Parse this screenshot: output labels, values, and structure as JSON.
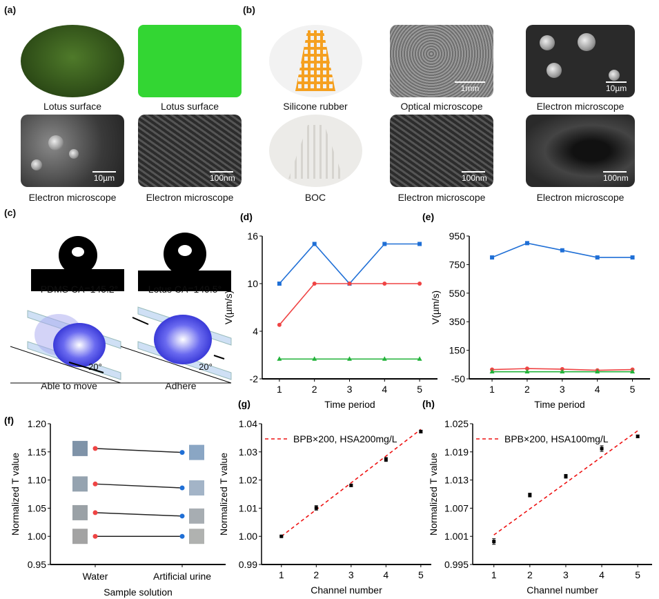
{
  "panels": {
    "a": {
      "label": "(a)",
      "captions": [
        "Lotus surface",
        "Lotus surface",
        "Electron microscope",
        "Electron microscope"
      ],
      "scales": [
        "10µm",
        "100nm"
      ]
    },
    "b": {
      "label": "(b)",
      "captions": [
        "Silicone rubber",
        "Optical microscope",
        "Electron microscope",
        "BOC",
        "Electron microscope",
        "Electron microscope"
      ],
      "scales": [
        "1mm",
        "10µm",
        "100nm",
        "100nm"
      ]
    },
    "c": {
      "label": "(c)",
      "captions": [
        "PDMS CA=145.2°",
        "Lotus CA=149.5°",
        "Able to move",
        "Adhere"
      ],
      "angle": "20°"
    }
  },
  "colors": {
    "blue": "#1f6fd6",
    "red": "#ef4444",
    "green": "#22b33a",
    "fit": "#e11",
    "black": "#111"
  },
  "chart_data": [
    {
      "id": "d",
      "label": "(d)",
      "type": "line",
      "xlabel": "Time period",
      "ylabel": "V(µm/s)",
      "ylim": [
        -2,
        16
      ],
      "yticks": [
        "-2",
        "4",
        "10",
        "16"
      ],
      "x": [
        1,
        2,
        3,
        4,
        5
      ],
      "xticks": [
        "1",
        "2",
        "3",
        "4",
        "5"
      ],
      "series": [
        {
          "name": "blue",
          "color": "#1f6fd6",
          "marker": "square",
          "values": [
            10,
            15,
            10,
            15,
            15
          ]
        },
        {
          "name": "red",
          "color": "#ef4444",
          "marker": "circle",
          "values": [
            4.8,
            10,
            10,
            10,
            10
          ]
        },
        {
          "name": "green",
          "color": "#22b33a",
          "marker": "triangle",
          "values": [
            0.5,
            0.5,
            0.5,
            0.5,
            0.5
          ]
        }
      ]
    },
    {
      "id": "e",
      "label": "(e)",
      "type": "line",
      "xlabel": "Time period",
      "ylabel": "V(µm/s)",
      "ylim": [
        -50,
        950
      ],
      "yticks": [
        "-50",
        "150",
        "350",
        "550",
        "750",
        "950"
      ],
      "x": [
        1,
        2,
        3,
        4,
        5
      ],
      "xticks": [
        "1",
        "2",
        "3",
        "4",
        "5"
      ],
      "series": [
        {
          "name": "blue",
          "color": "#1f6fd6",
          "marker": "square",
          "values": [
            800,
            900,
            850,
            800,
            800
          ]
        },
        {
          "name": "red",
          "color": "#ef4444",
          "marker": "circle",
          "values": [
            15,
            22,
            18,
            10,
            15
          ]
        },
        {
          "name": "green",
          "color": "#22b33a",
          "marker": "triangle",
          "values": [
            0,
            0,
            0,
            0,
            0
          ]
        }
      ]
    },
    {
      "id": "f",
      "label": "(f)",
      "type": "line",
      "xlabel": "Sample solution",
      "ylabel": "Normalized T value",
      "ylim": [
        0.95,
        1.2
      ],
      "yticks": [
        "0.95",
        "1.00",
        "1.05",
        "1.10",
        "1.15",
        "1.20"
      ],
      "categories": [
        "Water",
        "Artificial urine"
      ],
      "pairs": [
        {
          "water": 1.156,
          "urine": 1.149,
          "swatch_water": "#7f93a8",
          "swatch_urine": "#8aa6c4"
        },
        {
          "water": 1.093,
          "urine": 1.086,
          "swatch_water": "#95a3b0",
          "swatch_urine": "#a3b4c7"
        },
        {
          "water": 1.042,
          "urine": 1.036,
          "swatch_water": "#9aa1a6",
          "swatch_urine": "#a7adb2"
        },
        {
          "water": 1.0,
          "urine": 1.0,
          "swatch_water": "#a3a3a3",
          "swatch_urine": "#b0b2b0"
        }
      ]
    },
    {
      "id": "g",
      "label": "(g)",
      "type": "scatter",
      "xlabel": "Channel number",
      "ylabel": "Normalized T value",
      "ylim": [
        0.99,
        1.04
      ],
      "yticks": [
        "0.99",
        "1.00",
        "1.01",
        "1.02",
        "1.03",
        "1.04"
      ],
      "x": [
        1,
        2,
        3,
        4,
        5
      ],
      "xticks": [
        "1",
        "2",
        "3",
        "4",
        "5"
      ],
      "values": [
        1.0,
        1.0101,
        1.0181,
        1.0273,
        1.0372
      ],
      "errors": [
        0.0002,
        0.0008,
        0.0004,
        0.0007,
        0.0005
      ],
      "fit": {
        "name": "BPB×200, HSA200mg/L",
        "x": [
          1,
          5
        ],
        "y": [
          1.0,
          1.038
        ]
      },
      "legend": "top-left"
    },
    {
      "id": "h",
      "label": "(h)",
      "type": "scatter",
      "xlabel": "Channel number",
      "ylabel": "Normalized T value",
      "ylim": [
        0.995,
        1.025
      ],
      "yticks": [
        "0.995",
        "1.001",
        "1.007",
        "1.013",
        "1.019",
        "1.025"
      ],
      "x": [
        1,
        2,
        3,
        4,
        5
      ],
      "xticks": [
        "1",
        "2",
        "3",
        "4",
        "5"
      ],
      "values": [
        0.9999,
        1.0098,
        1.0138,
        1.0197,
        1.0223
      ],
      "errors": [
        0.0006,
        0.0004,
        0.0004,
        0.0006,
        0.0003
      ],
      "fit": {
        "name": "BPB×200, HSA100mg/L",
        "x": [
          1,
          5
        ],
        "y": [
          1.0013,
          1.0235
        ]
      },
      "legend": "top-left"
    }
  ]
}
